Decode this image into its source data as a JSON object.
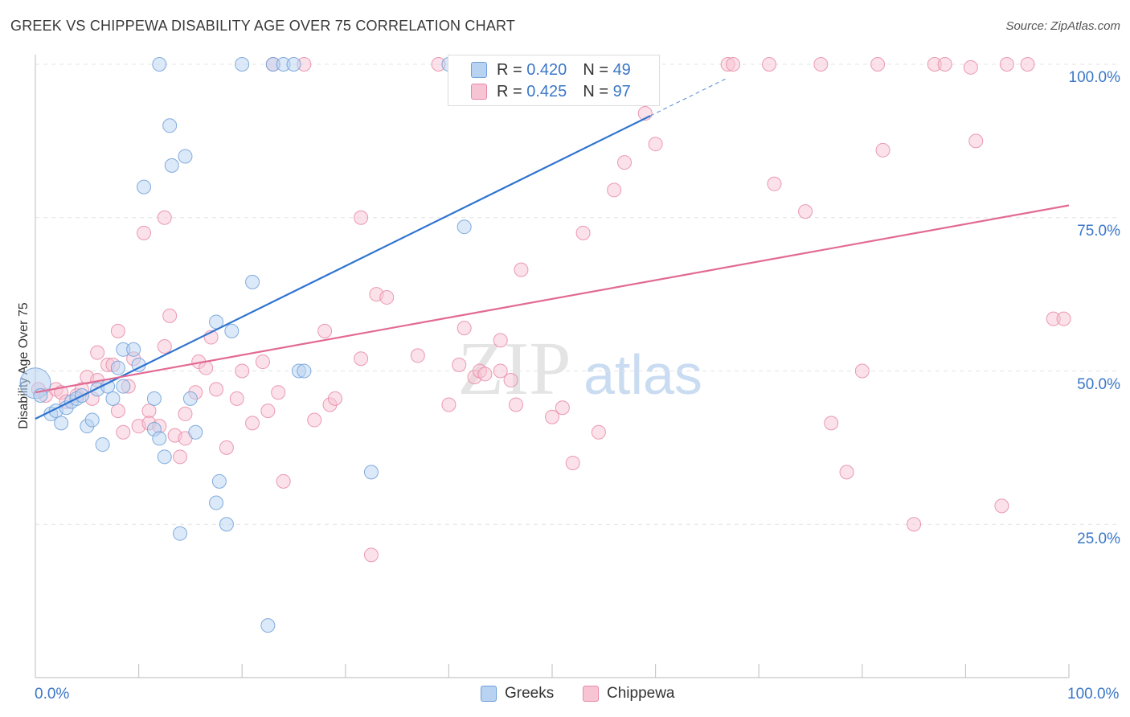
{
  "title": "GREEK VS CHIPPEWA DISABILITY AGE OVER 75 CORRELATION CHART",
  "source": "Source: ZipAtlas.com",
  "watermark": {
    "zip": "ZIP",
    "atlas": "atlas"
  },
  "legend_top": {
    "rows": [
      {
        "r_label": "R =",
        "r_value": "0.420",
        "n_label": "N =",
        "n_value": "49"
      },
      {
        "r_label": "R =",
        "r_value": "0.425",
        "n_label": "N =",
        "n_value": "97"
      }
    ]
  },
  "legend_bottom": {
    "greeks": "Greeks",
    "chippewa": "Chippewa"
  },
  "colors": {
    "blue_fill": "#b8d3f2",
    "blue_stroke": "#6f9fd8",
    "blue_line": "#2f74d0",
    "pink_fill": "#f7c4d3",
    "pink_stroke": "#e889a6",
    "pink_line": "#e26a94",
    "tick_text": "#3b77c7",
    "grid": "#e3e3e3"
  },
  "chart_data": {
    "type": "scatter",
    "title": "GREEK VS CHIPPEWA DISABILITY AGE OVER 75 CORRELATION CHART",
    "xlabel": "",
    "ylabel": "Disability Age Over 75",
    "xlim": [
      0,
      100
    ],
    "ylim": [
      0,
      104.5
    ],
    "x_tick_labels": [
      "0.0%",
      "100.0%"
    ],
    "y_tick_labels": [
      "25.0%",
      "50.0%",
      "75.0%",
      "100.0%"
    ],
    "y_ticks": [
      25,
      50,
      75,
      100
    ],
    "x_minor_ticks": [
      10,
      20,
      30,
      40,
      50,
      60,
      70,
      80,
      90,
      100
    ],
    "series": [
      {
        "name": "Greeks",
        "r": 0.42,
        "n": 49,
        "trend": {
          "x0": 0,
          "y0": 42.2,
          "x1": 59.5,
          "y1": 91.6,
          "dash_x1": 67,
          "dash_y1": 97.8
        },
        "points": [
          [
            0.0,
            48.0,
            1
          ],
          [
            0.5,
            46.0,
            0
          ],
          [
            1.5,
            43.0,
            0
          ],
          [
            2,
            43.5,
            0
          ],
          [
            2.5,
            41.5,
            0
          ],
          [
            3,
            44,
            0
          ],
          [
            3.5,
            45,
            0
          ],
          [
            4,
            45.5,
            0
          ],
          [
            4.5,
            46,
            0
          ],
          [
            5,
            41,
            0
          ],
          [
            5.5,
            42,
            0
          ],
          [
            6,
            47,
            0
          ],
          [
            6.5,
            38,
            0
          ],
          [
            7,
            47.5,
            0
          ],
          [
            7.5,
            45.5,
            0
          ],
          [
            8,
            50.5,
            0
          ],
          [
            8.5,
            47.5,
            0
          ],
          [
            8.5,
            53.5,
            0
          ],
          [
            9.5,
            53.5,
            0
          ],
          [
            10,
            51,
            0
          ],
          [
            10.5,
            80,
            0
          ],
          [
            11.5,
            40.5,
            0
          ],
          [
            11.5,
            45.5,
            0
          ],
          [
            12,
            39,
            0
          ],
          [
            12.5,
            36,
            0
          ],
          [
            13,
            90,
            0
          ],
          [
            13.2,
            83.5,
            0
          ],
          [
            14,
            23.5,
            0
          ],
          [
            14.5,
            85,
            0
          ],
          [
            15,
            45.5,
            0
          ],
          [
            15.5,
            40,
            0
          ],
          [
            17.5,
            28.5,
            0
          ],
          [
            17.5,
            58,
            0
          ],
          [
            17.8,
            32,
            0
          ],
          [
            18.5,
            25,
            0
          ],
          [
            19,
            56.5,
            0
          ],
          [
            20,
            100,
            0
          ],
          [
            21,
            64.5,
            0
          ],
          [
            22.5,
            8.5,
            0
          ],
          [
            23,
            100,
            0
          ],
          [
            24,
            100,
            0
          ],
          [
            25,
            100,
            0
          ],
          [
            25.5,
            50,
            0
          ],
          [
            26,
            50,
            0
          ],
          [
            32.5,
            33.5,
            0
          ],
          [
            41.5,
            73.5,
            0
          ],
          [
            40,
            100,
            0
          ],
          [
            52,
            100,
            0
          ],
          [
            12,
            100,
            0
          ]
        ]
      },
      {
        "name": "Chippewa",
        "r": 0.425,
        "n": 97,
        "trend": {
          "x0": 0,
          "y0": 46.5,
          "x1": 100,
          "y1": 77
        },
        "points": [
          [
            0.3,
            47,
            0
          ],
          [
            1,
            46,
            0
          ],
          [
            2,
            47,
            0
          ],
          [
            2.5,
            46.5,
            0
          ],
          [
            3,
            45,
            0
          ],
          [
            4,
            46,
            0
          ],
          [
            4.5,
            47,
            0
          ],
          [
            5,
            49,
            0
          ],
          [
            5.5,
            45.5,
            0
          ],
          [
            6,
            48.5,
            0
          ],
          [
            6,
            53,
            0
          ],
          [
            7,
            51,
            0
          ],
          [
            7.5,
            51,
            0
          ],
          [
            8,
            43.5,
            0
          ],
          [
            8,
            56.5,
            0
          ],
          [
            8.5,
            40,
            0
          ],
          [
            9,
            47.5,
            0
          ],
          [
            9.5,
            52,
            0
          ],
          [
            10,
            41,
            0
          ],
          [
            10.5,
            72.5,
            0
          ],
          [
            11,
            43.5,
            0
          ],
          [
            11,
            41.5,
            0
          ],
          [
            12,
            41,
            0
          ],
          [
            12.5,
            54,
            0
          ],
          [
            12.5,
            75,
            0
          ],
          [
            13,
            59,
            0
          ],
          [
            13.5,
            39.5,
            0
          ],
          [
            14,
            36,
            0
          ],
          [
            14.5,
            39,
            0
          ],
          [
            14.5,
            43,
            0
          ],
          [
            15.5,
            46.5,
            0
          ],
          [
            15.8,
            51.5,
            0
          ],
          [
            16.5,
            50.5,
            0
          ],
          [
            17,
            55.5,
            0
          ],
          [
            17.5,
            47,
            0
          ],
          [
            18.5,
            37.5,
            0
          ],
          [
            19.5,
            45.5,
            0
          ],
          [
            20,
            50,
            0
          ],
          [
            21,
            41.5,
            0
          ],
          [
            22,
            51.5,
            0
          ],
          [
            22.5,
            43.5,
            0
          ],
          [
            23,
            100,
            0
          ],
          [
            23.5,
            46.5,
            0
          ],
          [
            24,
            32,
            0
          ],
          [
            26,
            100,
            0
          ],
          [
            27,
            42,
            0
          ],
          [
            28,
            56.5,
            0
          ],
          [
            28.5,
            44.5,
            0
          ],
          [
            29,
            45.5,
            0
          ],
          [
            31.5,
            75,
            0
          ],
          [
            31.5,
            52,
            0
          ],
          [
            32.5,
            20,
            0
          ],
          [
            33,
            62.5,
            0
          ],
          [
            34,
            62,
            0
          ],
          [
            37,
            52.5,
            0
          ],
          [
            39,
            100,
            0
          ],
          [
            40,
            44.5,
            0
          ],
          [
            41,
            51,
            0
          ],
          [
            41.5,
            57,
            0
          ],
          [
            42.5,
            49,
            0
          ],
          [
            43,
            50,
            0
          ],
          [
            43.5,
            49.5,
            0
          ],
          [
            45,
            55,
            0
          ],
          [
            45,
            50,
            0
          ],
          [
            46,
            48.5,
            0
          ],
          [
            46.5,
            44.5,
            0
          ],
          [
            47,
            66.5,
            0
          ],
          [
            50,
            42.5,
            0
          ],
          [
            51,
            44,
            0
          ],
          [
            52,
            35,
            0
          ],
          [
            53,
            72.5,
            0
          ],
          [
            54.5,
            40,
            0
          ],
          [
            56,
            79.5,
            0
          ],
          [
            57,
            84,
            0
          ],
          [
            59,
            92,
            0
          ],
          [
            60,
            87,
            0
          ],
          [
            67,
            100,
            0
          ],
          [
            67.5,
            100,
            0
          ],
          [
            71,
            100,
            0
          ],
          [
            71.5,
            80.5,
            0
          ],
          [
            74.5,
            76,
            0
          ],
          [
            76,
            100,
            0
          ],
          [
            77,
            41.5,
            0
          ],
          [
            78.5,
            33.5,
            0
          ],
          [
            80,
            50,
            0
          ],
          [
            81.5,
            100,
            0
          ],
          [
            82,
            86,
            0
          ],
          [
            85,
            25,
            0
          ],
          [
            87,
            100,
            0
          ],
          [
            88,
            100,
            0
          ],
          [
            90.5,
            99.5,
            0
          ],
          [
            91,
            87.5,
            0
          ],
          [
            93.5,
            28,
            0
          ],
          [
            94,
            100,
            0
          ],
          [
            96,
            100,
            0
          ],
          [
            98.5,
            58.5,
            0
          ],
          [
            99.5,
            58.5,
            0
          ]
        ]
      }
    ]
  }
}
